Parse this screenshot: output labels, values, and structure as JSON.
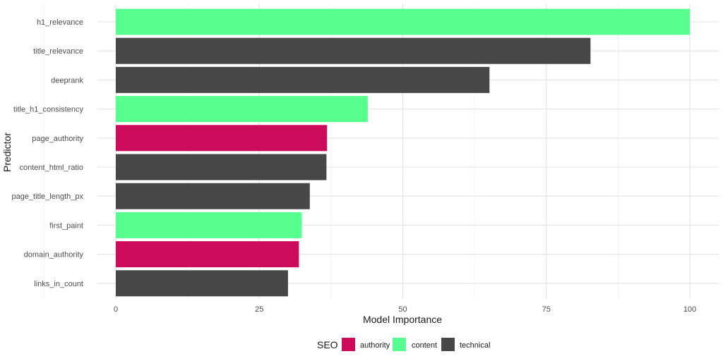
{
  "chart_data": {
    "type": "bar",
    "orientation": "horizontal",
    "title": "",
    "xlabel": "Model Importance",
    "ylabel": "Predictor",
    "xlim": [
      0,
      100
    ],
    "x_ticks": [
      0,
      25,
      50,
      75,
      100
    ],
    "grid": true,
    "categories": [
      "h1_relevance",
      "title_relevance",
      "deeprank",
      "title_h1_consistency",
      "page_authority",
      "content_html_ratio",
      "page_title_length_px",
      "first_paint",
      "domain_authority",
      "links_in_count"
    ],
    "values": [
      100,
      82.7,
      65.1,
      43.9,
      36.8,
      36.7,
      33.8,
      32.4,
      31.9,
      30.0
    ],
    "groups": [
      "content",
      "technical",
      "technical",
      "content",
      "authority",
      "technical",
      "technical",
      "content",
      "authority",
      "technical"
    ],
    "legend": {
      "title": "SEO",
      "position": "bottom",
      "entries": [
        {
          "label": "authority",
          "color": "#cc0c5a"
        },
        {
          "label": "content",
          "color": "#57ff8f"
        },
        {
          "label": "technical",
          "color": "#474747"
        }
      ]
    }
  }
}
